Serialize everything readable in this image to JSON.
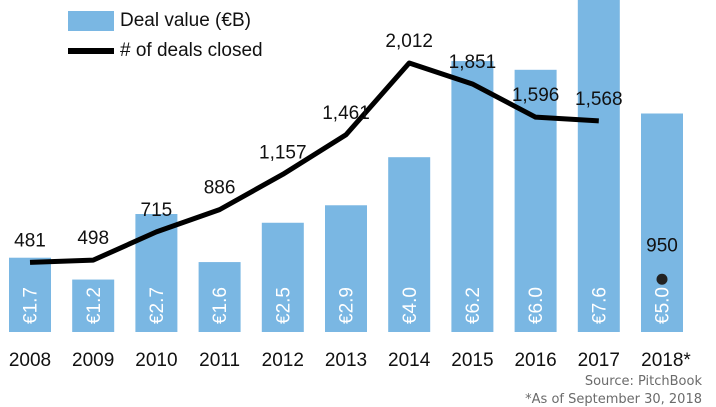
{
  "chart_data": {
    "type": "bar",
    "categories": [
      "2008",
      "2009",
      "2010",
      "2011",
      "2012",
      "2013",
      "2014",
      "2015",
      "2016",
      "2017",
      "2018*"
    ],
    "series": [
      {
        "name": "Deal value (€B)",
        "type": "bar",
        "values": [
          1.7,
          1.2,
          2.7,
          1.6,
          2.5,
          2.9,
          4.0,
          6.2,
          6.0,
          7.6,
          5.0
        ],
        "labels": [
          "€1.7",
          "€1.2",
          "€2.7",
          "€1.6",
          "€2.5",
          "€2.9",
          "€4.0",
          "€6.2",
          "€6.0",
          "€7.6",
          "€5.0"
        ],
        "color": "#7ab7e3"
      },
      {
        "name": "# of deals closed",
        "type": "line",
        "values": [
          481,
          498,
          715,
          886,
          1157,
          1461,
          2012,
          1851,
          1596,
          1568,
          950
        ],
        "labels": [
          "481",
          "498",
          "715",
          "886",
          "1,157",
          "1,461",
          "2,012",
          "1,851",
          "1,596",
          "1,568",
          "950"
        ],
        "color": "#000000",
        "line_points": 10,
        "last_point_style": "dot"
      }
    ],
    "grid": false,
    "legend_position": "top-left"
  },
  "legend": {
    "bar_label": "Deal value  (€B)",
    "line_label": "# of deals closed"
  },
  "footer": {
    "source": "Source: PitchBook",
    "note": "*As of September 30, 2018"
  }
}
